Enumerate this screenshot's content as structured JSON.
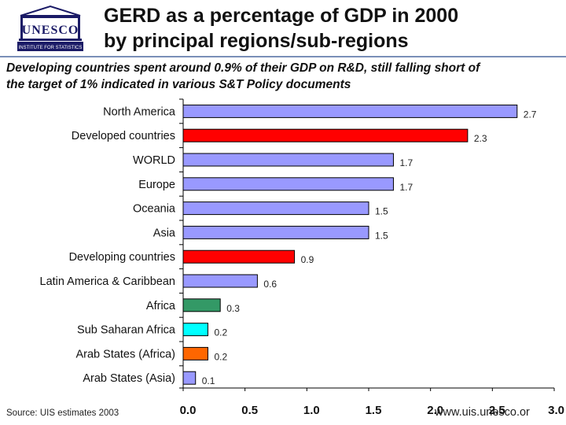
{
  "header": {
    "title_line1": "GERD as a percentage of GDP in 2000",
    "title_line2": "by principal regions/sub-regions"
  },
  "logo": {
    "wordmark": "UNESCO",
    "caption": "INSTITUTE FOR STATISTICS"
  },
  "subtitle": {
    "line1": "Developing countries spent around 0.9% of their GDP on R&D, still falling short of",
    "line2": "the target of 1% indicated in various S&T Policy documents"
  },
  "source": "Source: UIS estimates 2003",
  "url": "www.uis.unesco.or",
  "colors": {
    "lavender": "#9999ff",
    "red": "#ff0000",
    "green": "#339966",
    "cyan": "#00ffff",
    "orange": "#ff6600"
  },
  "chart_data": {
    "type": "bar",
    "orientation": "horizontal",
    "categories": [
      "North America",
      "Developed countries",
      "WORLD",
      "Europe",
      "Oceania",
      "Asia",
      "Developing countries",
      "Latin America & Caribbean",
      "Africa",
      "Sub Saharan Africa",
      "Arab States (Africa)",
      "Arab States (Asia)"
    ],
    "values": [
      2.7,
      2.3,
      1.7,
      1.7,
      1.5,
      1.5,
      0.9,
      0.6,
      0.3,
      0.2,
      0.2,
      0.1
    ],
    "value_labels": [
      "2.7",
      "2.3",
      "1.7",
      "1.7",
      "1.5",
      "1.5",
      "0.9",
      "0.6",
      "0.3",
      "0.2",
      "0.2",
      "0.1"
    ],
    "bar_colors": [
      "#9999ff",
      "#ff0000",
      "#9999ff",
      "#9999ff",
      "#9999ff",
      "#9999ff",
      "#ff0000",
      "#9999ff",
      "#339966",
      "#00ffff",
      "#ff6600",
      "#9999ff"
    ],
    "xlim": [
      0,
      3.0
    ],
    "xticks": [
      0.0,
      0.5,
      1.0,
      1.5,
      2.0,
      2.5,
      3.0
    ],
    "xtick_labels": [
      "0.0",
      "0.5",
      "1.0",
      "1.5",
      "2.0",
      "2.5",
      "3.0"
    ],
    "grid": false,
    "legend": "none"
  }
}
